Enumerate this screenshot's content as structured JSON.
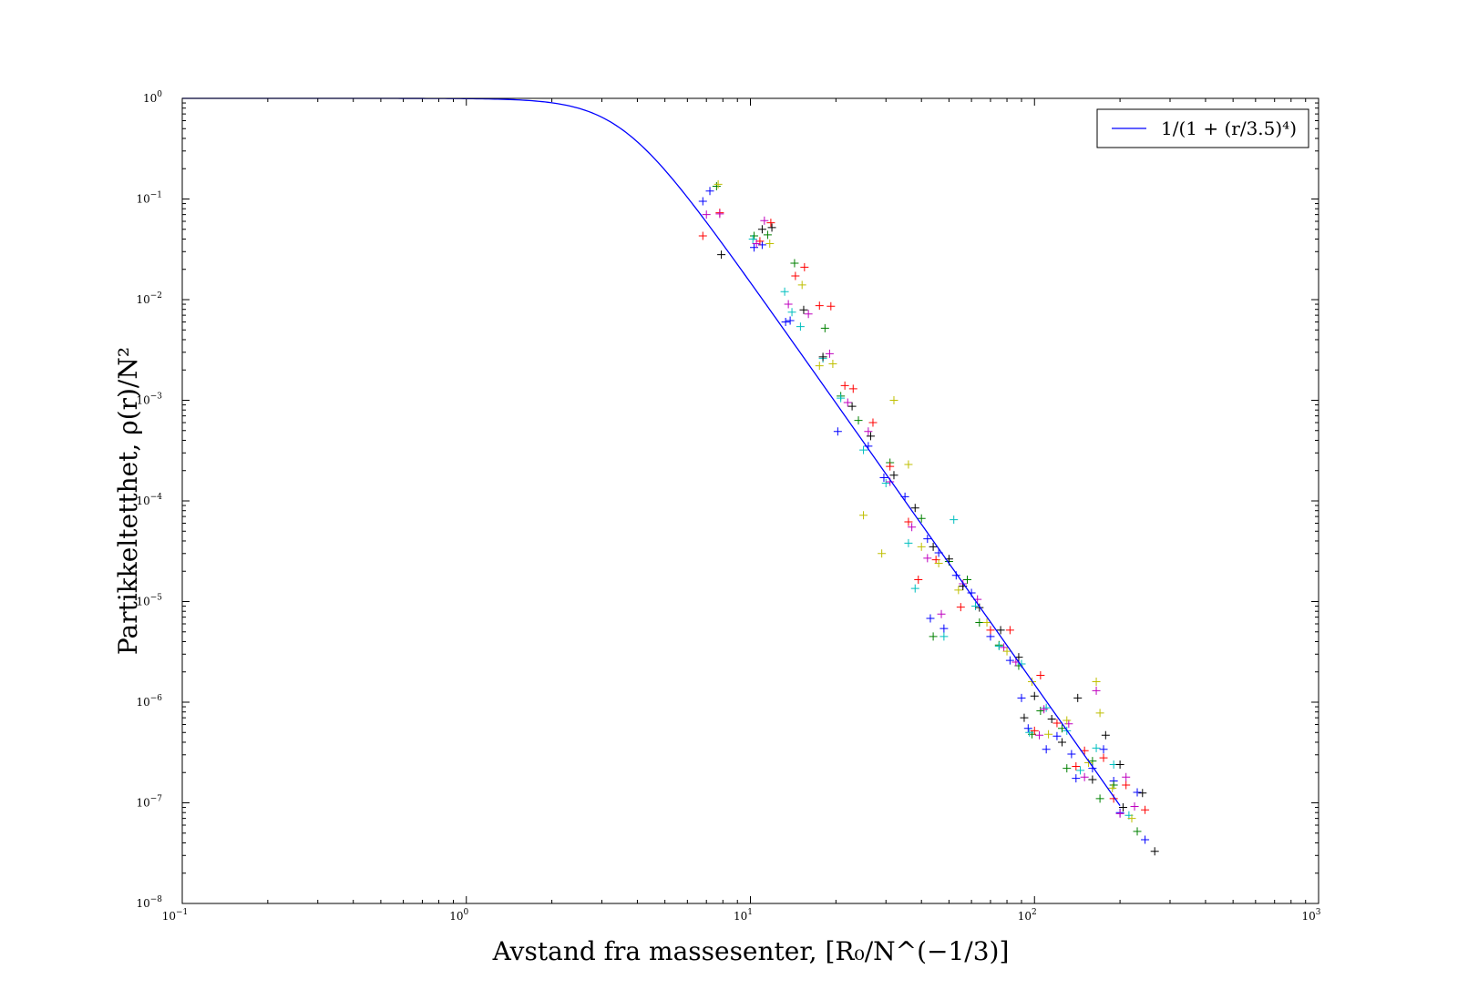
{
  "chart_data": {
    "type": "scatter",
    "title": "",
    "xlabel": "Avstand fra massesenter, [R₀/N^(−1/3)]",
    "ylabel": "Partikkeltetthet, ρ(r)/N²",
    "xscale": "log",
    "yscale": "log",
    "xlim": [
      0.1,
      1000
    ],
    "ylim": [
      1e-08,
      1
    ],
    "grid": false,
    "legend_position": "top-right",
    "x_ticks": [
      {
        "base": "10",
        "exp": "−1"
      },
      {
        "base": "10",
        "exp": "0"
      },
      {
        "base": "10",
        "exp": "1"
      },
      {
        "base": "10",
        "exp": "2"
      },
      {
        "base": "10",
        "exp": "3"
      }
    ],
    "y_ticks": [
      {
        "base": "10",
        "exp": "−8"
      },
      {
        "base": "10",
        "exp": "−7"
      },
      {
        "base": "10",
        "exp": "−6"
      },
      {
        "base": "10",
        "exp": "−5"
      },
      {
        "base": "10",
        "exp": "−4"
      },
      {
        "base": "10",
        "exp": "−3"
      },
      {
        "base": "10",
        "exp": "−2"
      },
      {
        "base": "10",
        "exp": "−1"
      },
      {
        "base": "10",
        "exp": "0"
      }
    ],
    "fit_line": {
      "name": "1/(1 + (r/3.5)⁴)",
      "color": "#0000ff",
      "formula": "1/(1+(r/3.5)^4)",
      "x_range": [
        0.1,
        200
      ]
    },
    "marker": "+",
    "series": [
      {
        "color": "#0000ff",
        "points": [
          [
            6.8,
            0.095
          ],
          [
            7.2,
            0.12
          ],
          [
            10.3,
            0.033
          ],
          [
            11.0,
            0.035
          ],
          [
            13.3,
            0.006
          ],
          [
            13.8,
            0.0062
          ],
          [
            20.3,
            0.00049
          ],
          [
            26,
            0.00035
          ],
          [
            29.5,
            0.00017
          ],
          [
            35,
            0.00011
          ],
          [
            42,
            4.2e-05
          ],
          [
            46,
            3.05e-05
          ],
          [
            53,
            1.82e-05
          ],
          [
            60,
            1.22e-05
          ],
          [
            43,
            6.8e-06
          ],
          [
            48,
            5.4e-06
          ],
          [
            70,
            4.5e-06
          ],
          [
            82,
            2.6e-06
          ],
          [
            90,
            1.1e-06
          ],
          [
            120,
            4.6e-07
          ],
          [
            135,
            3.05e-07
          ],
          [
            160,
            2.2e-07
          ],
          [
            175,
            3.4e-07
          ],
          [
            190,
            1.65e-07
          ],
          [
            230,
            1.27e-07
          ],
          [
            95,
            5.5e-07
          ],
          [
            110,
            3.4e-07
          ],
          [
            140,
            1.75e-07
          ],
          [
            200,
            8e-08
          ],
          [
            245,
            4.3e-08
          ]
        ]
      },
      {
        "color": "#008000",
        "points": [
          [
            7.6,
            0.134
          ],
          [
            10.3,
            0.043
          ],
          [
            11.5,
            0.044
          ],
          [
            14.3,
            0.023
          ],
          [
            18.3,
            0.0052
          ],
          [
            20.8,
            0.0011
          ],
          [
            24,
            0.00063
          ],
          [
            31,
            0.00024
          ],
          [
            40,
            6.7e-05
          ],
          [
            50,
            2.5e-05
          ],
          [
            58,
            1.65e-05
          ],
          [
            64,
            6.2e-06
          ],
          [
            44,
            4.5e-06
          ],
          [
            75,
            3.7e-06
          ],
          [
            88,
            2.3e-06
          ],
          [
            105,
            8.2e-07
          ],
          [
            125,
            5.5e-07
          ],
          [
            160,
            2.6e-07
          ],
          [
            190,
            1.5e-07
          ],
          [
            98,
            4.8e-07
          ],
          [
            130,
            2.2e-07
          ],
          [
            170,
            1.1e-07
          ],
          [
            230,
            5.2e-08
          ]
        ]
      },
      {
        "color": "#ff0000",
        "points": [
          [
            6.8,
            0.043
          ],
          [
            7.8,
            0.073
          ],
          [
            10.8,
            0.038
          ],
          [
            11.8,
            0.058
          ],
          [
            14.4,
            0.0172
          ],
          [
            15.5,
            0.021
          ],
          [
            17.5,
            0.0087
          ],
          [
            19.2,
            0.0086
          ],
          [
            21.5,
            0.0014
          ],
          [
            23,
            0.0013
          ],
          [
            27,
            0.0006
          ],
          [
            31,
            0.00022
          ],
          [
            36,
            6.2e-05
          ],
          [
            39,
            1.65e-05
          ],
          [
            45,
            2.6e-05
          ],
          [
            55,
            8.8e-06
          ],
          [
            70,
            5.2e-06
          ],
          [
            82,
            5.2e-06
          ],
          [
            105,
            1.85e-06
          ],
          [
            120,
            6.2e-07
          ],
          [
            150,
            3.3e-07
          ],
          [
            175,
            2.8e-07
          ],
          [
            210,
            1.5e-07
          ],
          [
            245,
            8.5e-08
          ],
          [
            100,
            5.2e-07
          ],
          [
            140,
            2.3e-07
          ],
          [
            190,
            1.1e-07
          ]
        ]
      },
      {
        "color": "#00bfbf",
        "points": [
          [
            10.2,
            0.04
          ],
          [
            13.2,
            0.012
          ],
          [
            14,
            0.0075
          ],
          [
            15,
            0.0054
          ],
          [
            18,
            0.0026
          ],
          [
            20.8,
            0.00105
          ],
          [
            25,
            0.00032
          ],
          [
            30,
            0.00015
          ],
          [
            36,
            3.8e-05
          ],
          [
            38,
            1.35e-05
          ],
          [
            48,
            4.5e-06
          ],
          [
            52,
            6.5e-05
          ],
          [
            62,
            9e-06
          ],
          [
            75,
            3.6e-06
          ],
          [
            90,
            2.4e-06
          ],
          [
            110,
            8.8e-07
          ],
          [
            130,
            5.2e-07
          ],
          [
            165,
            3.5e-07
          ],
          [
            190,
            2.4e-07
          ],
          [
            96,
            5e-07
          ],
          [
            145,
            2.1e-07
          ],
          [
            215,
            7.5e-08
          ]
        ]
      },
      {
        "color": "#bf00bf",
        "points": [
          [
            7.0,
            0.07
          ],
          [
            7.8,
            0.071
          ],
          [
            10.5,
            0.036
          ],
          [
            11.2,
            0.061
          ],
          [
            13.6,
            0.009
          ],
          [
            16.0,
            0.0072
          ],
          [
            19.0,
            0.0029
          ],
          [
            22.0,
            0.00095
          ],
          [
            26,
            0.00049
          ],
          [
            31,
            0.000155
          ],
          [
            37,
            5.5e-05
          ],
          [
            42,
            2.7e-05
          ],
          [
            47,
            7.5e-06
          ],
          [
            56,
            1.5e-05
          ],
          [
            63,
            1.05e-05
          ],
          [
            78,
            3.5e-06
          ],
          [
            86,
            2.5e-06
          ],
          [
            108,
            8.5e-07
          ],
          [
            132,
            6.1e-07
          ],
          [
            165,
            1.3e-06
          ],
          [
            210,
            1.8e-07
          ],
          [
            225,
            9.2e-08
          ],
          [
            104,
            4.7e-07
          ],
          [
            150,
            1.8e-07
          ],
          [
            200,
            7.8e-08
          ]
        ]
      },
      {
        "color": "#bfbf00",
        "points": [
          [
            7.7,
            0.14
          ],
          [
            11.7,
            0.036
          ],
          [
            15.2,
            0.014
          ],
          [
            17.5,
            0.0022
          ],
          [
            19.5,
            0.0023
          ],
          [
            25,
            7.2e-05
          ],
          [
            29,
            3e-05
          ],
          [
            32,
            0.001
          ],
          [
            36,
            0.00023
          ],
          [
            40,
            3.5e-05
          ],
          [
            46,
            2.4e-05
          ],
          [
            54,
            1.3e-05
          ],
          [
            68,
            6.2e-06
          ],
          [
            80,
            3.2e-06
          ],
          [
            98,
            1.6e-06
          ],
          [
            130,
            6.6e-07
          ],
          [
            165,
            1.6e-06
          ],
          [
            170,
            7.8e-07
          ],
          [
            188,
            1.4e-07
          ],
          [
            220,
            7e-08
          ],
          [
            112,
            4.8e-07
          ],
          [
            155,
            2.5e-07
          ]
        ]
      },
      {
        "color": "#000000",
        "points": [
          [
            7.9,
            0.028
          ],
          [
            11.0,
            0.05
          ],
          [
            11.9,
            0.052
          ],
          [
            15.4,
            0.0079
          ],
          [
            18.0,
            0.0027
          ],
          [
            22.8,
            0.00087
          ],
          [
            26.5,
            0.00044
          ],
          [
            32,
            0.00018
          ],
          [
            38,
            8.5e-05
          ],
          [
            44,
            3.5e-05
          ],
          [
            50,
            2.65e-05
          ],
          [
            56,
            1.42e-05
          ],
          [
            64,
            8.7e-06
          ],
          [
            76,
            5.2e-06
          ],
          [
            88,
            2.8e-06
          ],
          [
            100,
            1.15e-06
          ],
          [
            115,
            6.8e-07
          ],
          [
            142,
            1.1e-06
          ],
          [
            178,
            4.7e-07
          ],
          [
            200,
            2.4e-07
          ],
          [
            240,
            1.25e-07
          ],
          [
            92,
            7e-07
          ],
          [
            125,
            4e-07
          ],
          [
            160,
            1.7e-07
          ],
          [
            205,
            9e-08
          ],
          [
            265,
            3.3e-08
          ]
        ]
      }
    ]
  }
}
